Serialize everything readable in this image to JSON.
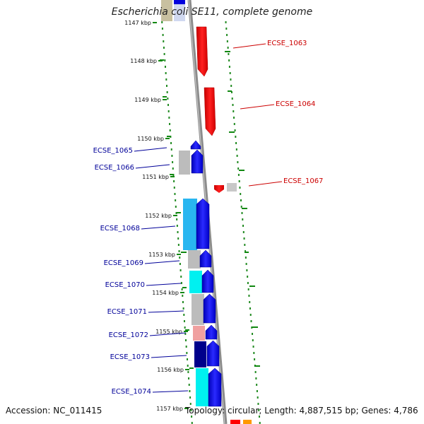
{
  "title": "Escherichia coli SE11, complete genome",
  "accession_text": "Accession: NC_011415",
  "summary_text": "Topology: circular; Length: 4,887,515 bp; Genes: 4,786",
  "scale_labels": [
    "1147 kbp",
    "1148 kbp",
    "1149 kbp",
    "1150 kbp",
    "1151 kbp",
    "1152 kbp",
    "1153 kbp",
    "1154 kbp",
    "1155 kbp",
    "1156 kbp",
    "1157 kbp"
  ],
  "genes": [
    {
      "label": "ECSE_1063",
      "strand": "forward",
      "color": "#cc0000"
    },
    {
      "label": "ECSE_1064",
      "strand": "forward",
      "color": "#cc0000"
    },
    {
      "label": "ECSE_1065",
      "strand": "reverse",
      "color": "#000099"
    },
    {
      "label": "ECSE_1066",
      "strand": "reverse",
      "color": "#000099"
    },
    {
      "label": "ECSE_1067",
      "strand": "forward",
      "color": "#cc0000"
    },
    {
      "label": "ECSE_1068",
      "strand": "reverse",
      "color": "#000099"
    },
    {
      "label": "ECSE_1069",
      "strand": "reverse",
      "color": "#000099"
    },
    {
      "label": "ECSE_1070",
      "strand": "reverse",
      "color": "#000099"
    },
    {
      "label": "ECSE_1071",
      "strand": "reverse",
      "color": "#000099"
    },
    {
      "label": "ECSE_1072",
      "strand": "reverse",
      "color": "#000099"
    },
    {
      "label": "ECSE_1073",
      "strand": "reverse",
      "color": "#000099"
    },
    {
      "label": "ECSE_1074",
      "strand": "reverse",
      "color": "#000099"
    }
  ],
  "colors": {
    "backbone": "#8c8c8c",
    "forward_gene": "#ff0000",
    "reverse_gene": "#0000ee",
    "gc_dots": "#228b22",
    "cog_grey": "#bcbcbc",
    "cog_lightblue": "#29b6f0",
    "cog_cyan": "#00f0f0",
    "cog_pink": "#f0a0a0",
    "cog_navy": "#00008b"
  }
}
